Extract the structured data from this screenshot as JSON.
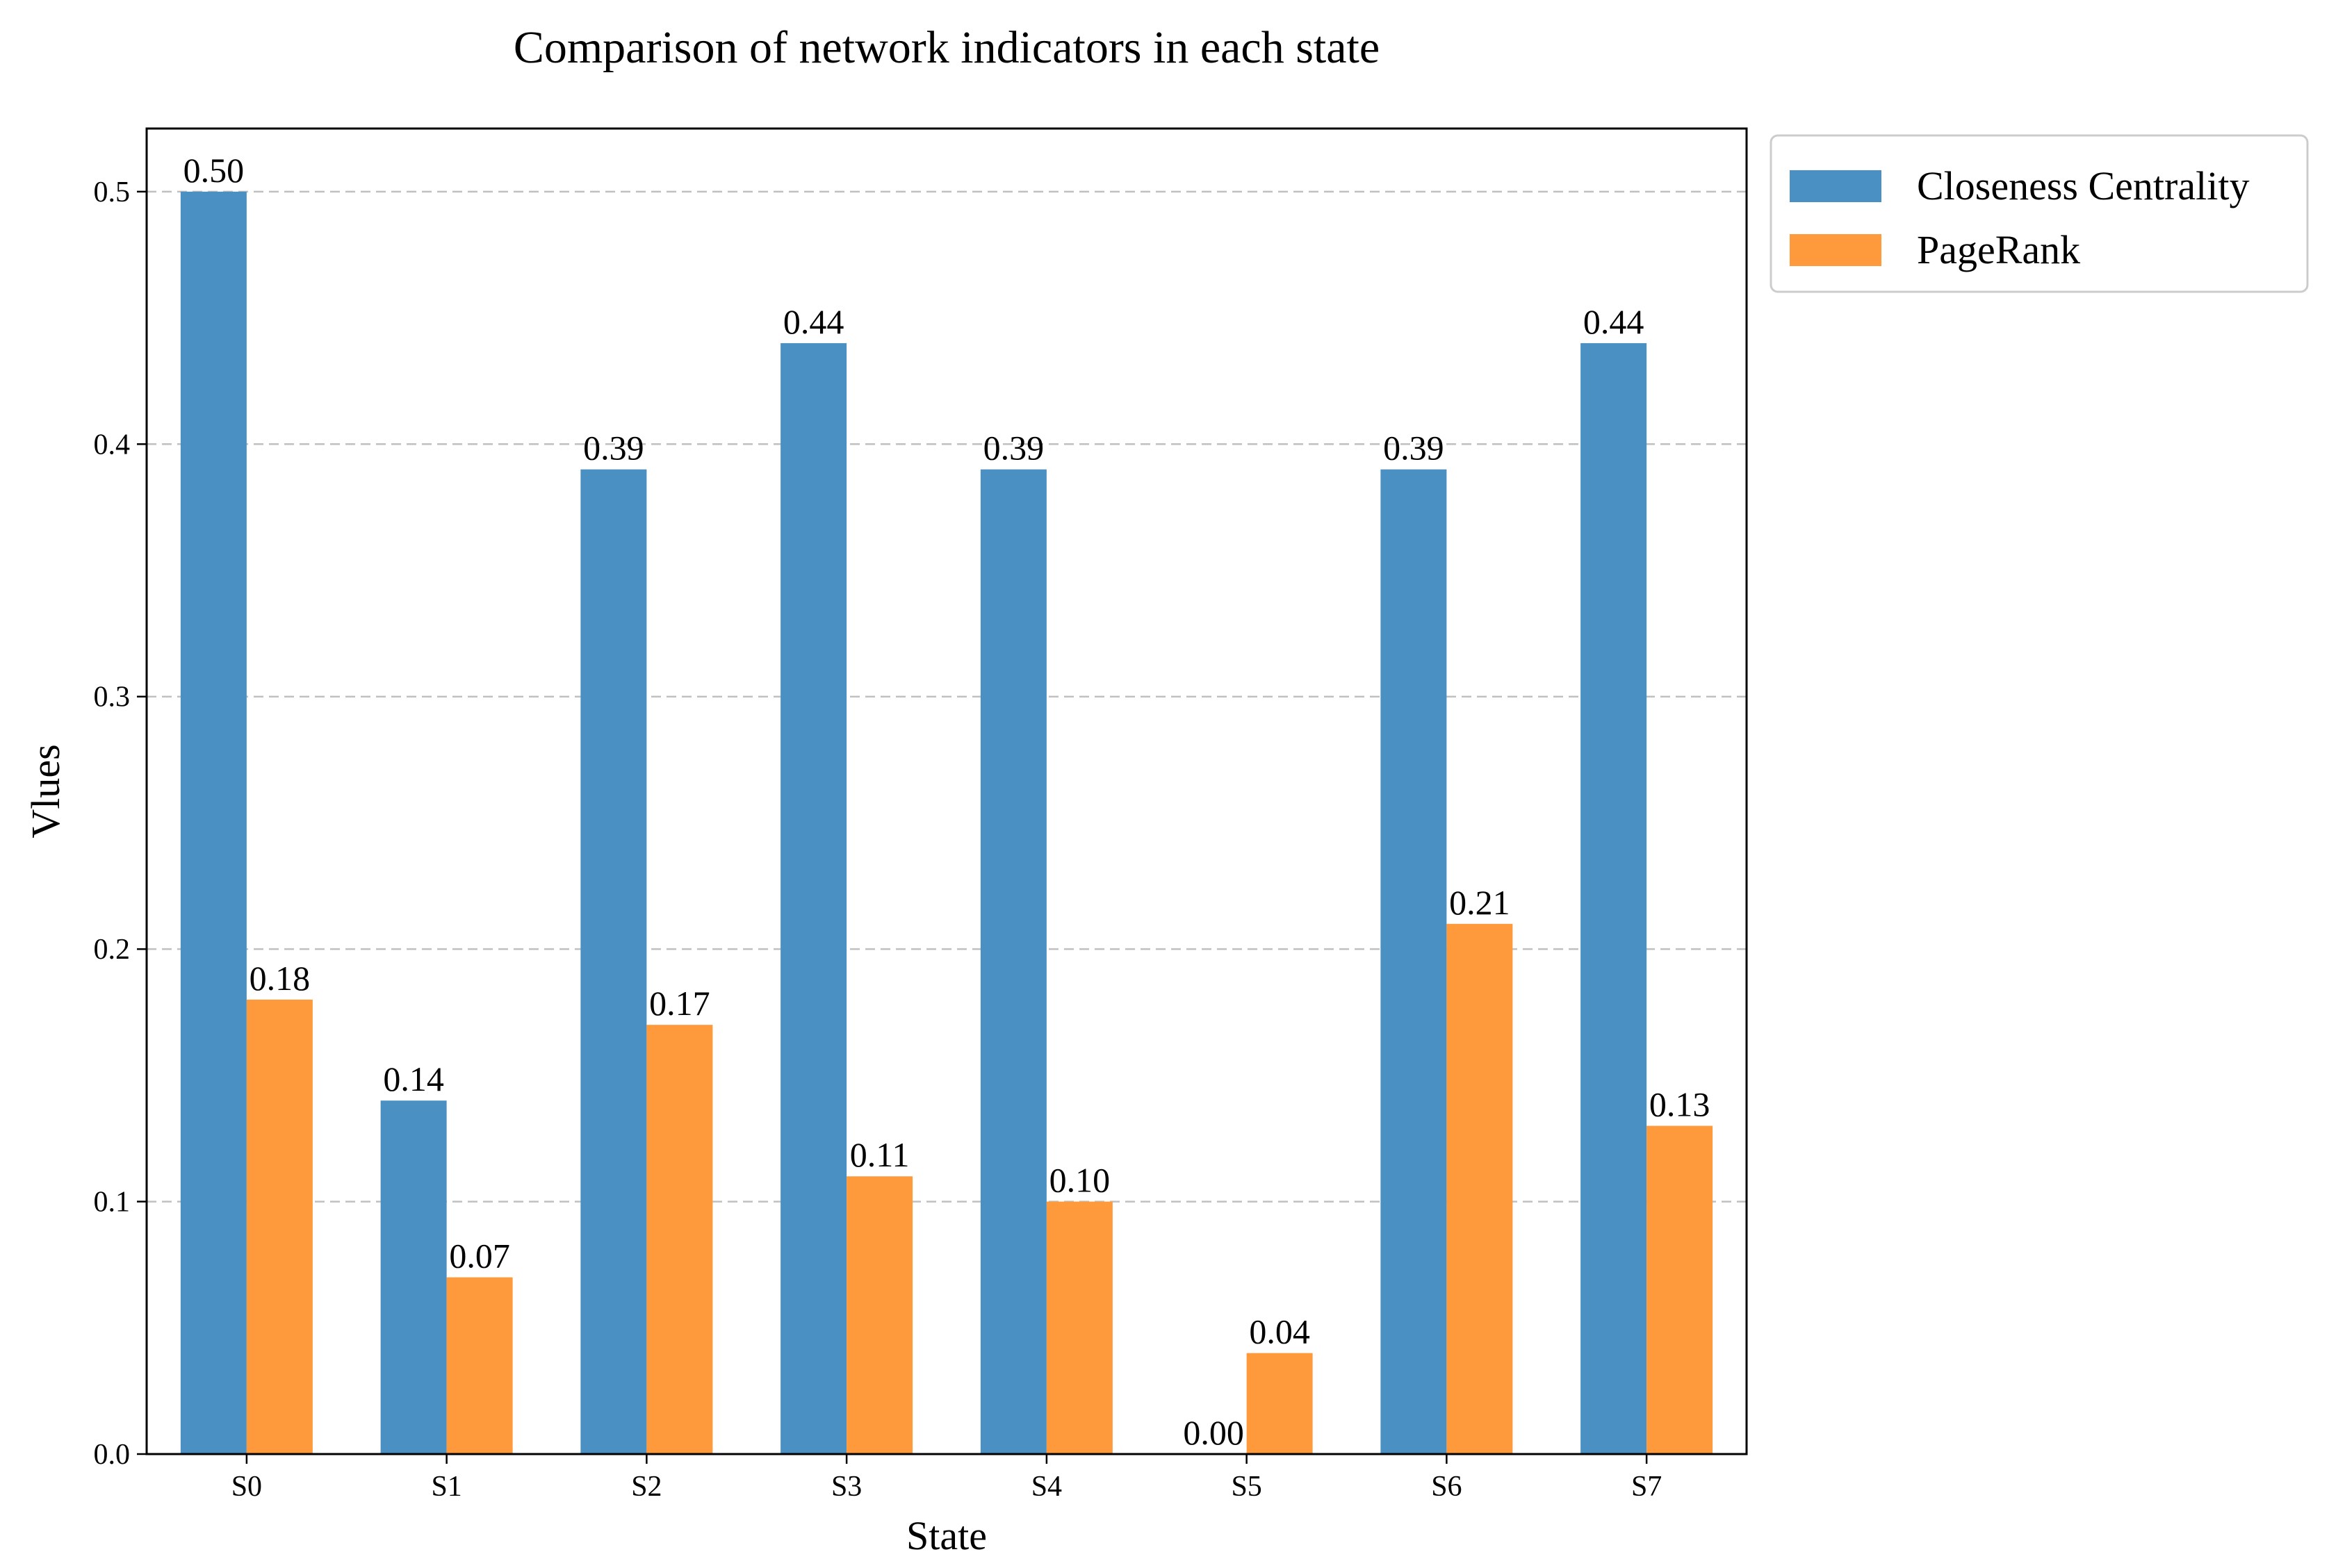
{
  "chart_data": {
    "type": "bar",
    "title": "Comparison of network indicators in each state",
    "xlabel": "State",
    "ylabel": "Vlues",
    "categories": [
      "S0",
      "S1",
      "S2",
      "S3",
      "S4",
      "S5",
      "S6",
      "S7"
    ],
    "series": [
      {
        "name": "Closeness Centrality",
        "color": "#4a90c2",
        "values": [
          0.5,
          0.14,
          0.39,
          0.44,
          0.39,
          0.0,
          0.39,
          0.44
        ],
        "labels": [
          "0.50",
          "0.14",
          "0.39",
          "0.44",
          "0.39",
          "0.00",
          "0.39",
          "0.44"
        ]
      },
      {
        "name": "PageRank",
        "color": "#ff9a3c",
        "values": [
          0.18,
          0.07,
          0.17,
          0.11,
          0.1,
          0.04,
          0.21,
          0.13
        ],
        "labels": [
          "0.18",
          "0.07",
          "0.17",
          "0.11",
          "0.10",
          "0.04",
          "0.21",
          "0.13"
        ]
      }
    ],
    "ylim": [
      0,
      0.525
    ],
    "yticks": [
      0.0,
      0.1,
      0.2,
      0.3,
      0.4,
      0.5
    ],
    "ytick_labels": [
      "0.0",
      "0.1",
      "0.2",
      "0.3",
      "0.4",
      "0.5"
    ],
    "grid": "y-dashed",
    "legend_position": "outside-top-right"
  }
}
